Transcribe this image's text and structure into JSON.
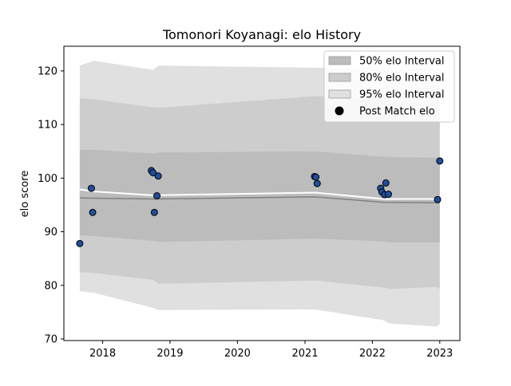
{
  "chart_data": {
    "type": "line",
    "title": "Tomonori Koyanagi: elo History",
    "xlabel": "",
    "ylabel": "elo score",
    "xlim": [
      "2017-06-05",
      "2023-04-20"
    ],
    "ylim": [
      69.7,
      124.6
    ],
    "x_ticks": [
      {
        "date": "2018-01-01",
        "label": "2018"
      },
      {
        "date": "2019-01-01",
        "label": "2019"
      },
      {
        "date": "2020-01-01",
        "label": "2020"
      },
      {
        "date": "2021-01-01",
        "label": "2021"
      },
      {
        "date": "2022-01-01",
        "label": "2022"
      },
      {
        "date": "2023-01-01",
        "label": "2023"
      }
    ],
    "y_ticks": [
      70,
      80,
      90,
      100,
      110,
      120
    ],
    "legend": {
      "placement": "top-right",
      "entries": [
        "50% elo Interval",
        "80% elo Interval",
        "95% elo Interval",
        "Post Match elo"
      ]
    },
    "colors": {
      "band95": "#e0e0e0",
      "band80": "#cdcdcd",
      "band50": "#bcbcbc",
      "median": "#808080",
      "mean": "#ffffff",
      "point_fill": "#1f4e9c",
      "point_edge": "#000000"
    },
    "series": [
      {
        "name": "95% elo Interval",
        "x": [
          "2017-08-30",
          "2017-11-15",
          "2018-10-01",
          "2018-11-01",
          "2021-02-25",
          "2022-03-01",
          "2022-04-01",
          "2022-12-15",
          "2023-01-01"
        ],
        "upper": [
          121.0,
          121.9,
          120.2,
          121.0,
          120.6,
          120.4,
          120.2,
          120.6,
          120.3
        ],
        "lower": [
          78.9,
          78.6,
          75.8,
          75.4,
          75.5,
          73.5,
          72.9,
          72.3,
          72.8
        ]
      },
      {
        "name": "80% elo Interval",
        "x": [
          "2017-08-30",
          "2017-11-15",
          "2018-10-01",
          "2018-11-01",
          "2021-02-25",
          "2022-03-01",
          "2022-04-01",
          "2022-12-15",
          "2023-01-01"
        ],
        "upper": [
          114.9,
          114.7,
          113.2,
          113.1,
          115.3,
          114.6,
          114.4,
          114.2,
          114.4
        ],
        "lower": [
          82.5,
          82.3,
          81.0,
          80.3,
          80.9,
          79.6,
          79.3,
          79.7,
          79.3
        ]
      },
      {
        "name": "50% elo Interval",
        "x": [
          "2017-08-30",
          "2017-11-15",
          "2018-10-01",
          "2018-11-01",
          "2021-02-25",
          "2022-03-01",
          "2022-04-01",
          "2022-12-15",
          "2023-01-01"
        ],
        "upper": [
          105.3,
          105.3,
          104.6,
          104.8,
          105.0,
          104.0,
          103.9,
          103.8,
          103.9
        ],
        "lower": [
          89.3,
          89.2,
          88.3,
          88.1,
          88.7,
          88.2,
          88.0,
          88.0,
          88.1
        ]
      },
      {
        "name": "median",
        "x": [
          "2017-08-30",
          "2018-10-01",
          "2021-02-25",
          "2022-03-01",
          "2023-01-01"
        ],
        "y": [
          96.3,
          96.1,
          96.5,
          95.5,
          95.4
        ]
      },
      {
        "name": "mean",
        "x": [
          "2017-08-30",
          "2017-11-15",
          "2018-10-01",
          "2021-02-25",
          "2022-03-01",
          "2022-12-15",
          "2023-01-01"
        ],
        "y": [
          97.9,
          97.5,
          96.8,
          97.3,
          96.1,
          96.1,
          96.0
        ]
      },
      {
        "name": "Post Match elo",
        "points": [
          {
            "x": "2017-08-30",
            "y": 87.8
          },
          {
            "x": "2017-11-01",
            "y": 98.1
          },
          {
            "x": "2017-11-08",
            "y": 93.6
          },
          {
            "x": "2018-09-22",
            "y": 101.4
          },
          {
            "x": "2018-10-01",
            "y": 101.0
          },
          {
            "x": "2018-10-08",
            "y": 93.6
          },
          {
            "x": "2018-10-22",
            "y": 96.7
          },
          {
            "x": "2018-10-29",
            "y": 100.4
          },
          {
            "x": "2021-02-22",
            "y": 100.3
          },
          {
            "x": "2021-03-01",
            "y": 100.2
          },
          {
            "x": "2021-03-08",
            "y": 99.0
          },
          {
            "x": "2022-02-15",
            "y": 98.1
          },
          {
            "x": "2022-02-22",
            "y": 97.4
          },
          {
            "x": "2022-03-08",
            "y": 96.9
          },
          {
            "x": "2022-03-15",
            "y": 99.1
          },
          {
            "x": "2022-03-29",
            "y": 97.0
          },
          {
            "x": "2022-12-20",
            "y": 96.0
          },
          {
            "x": "2023-01-01",
            "y": 103.2
          }
        ]
      }
    ]
  }
}
